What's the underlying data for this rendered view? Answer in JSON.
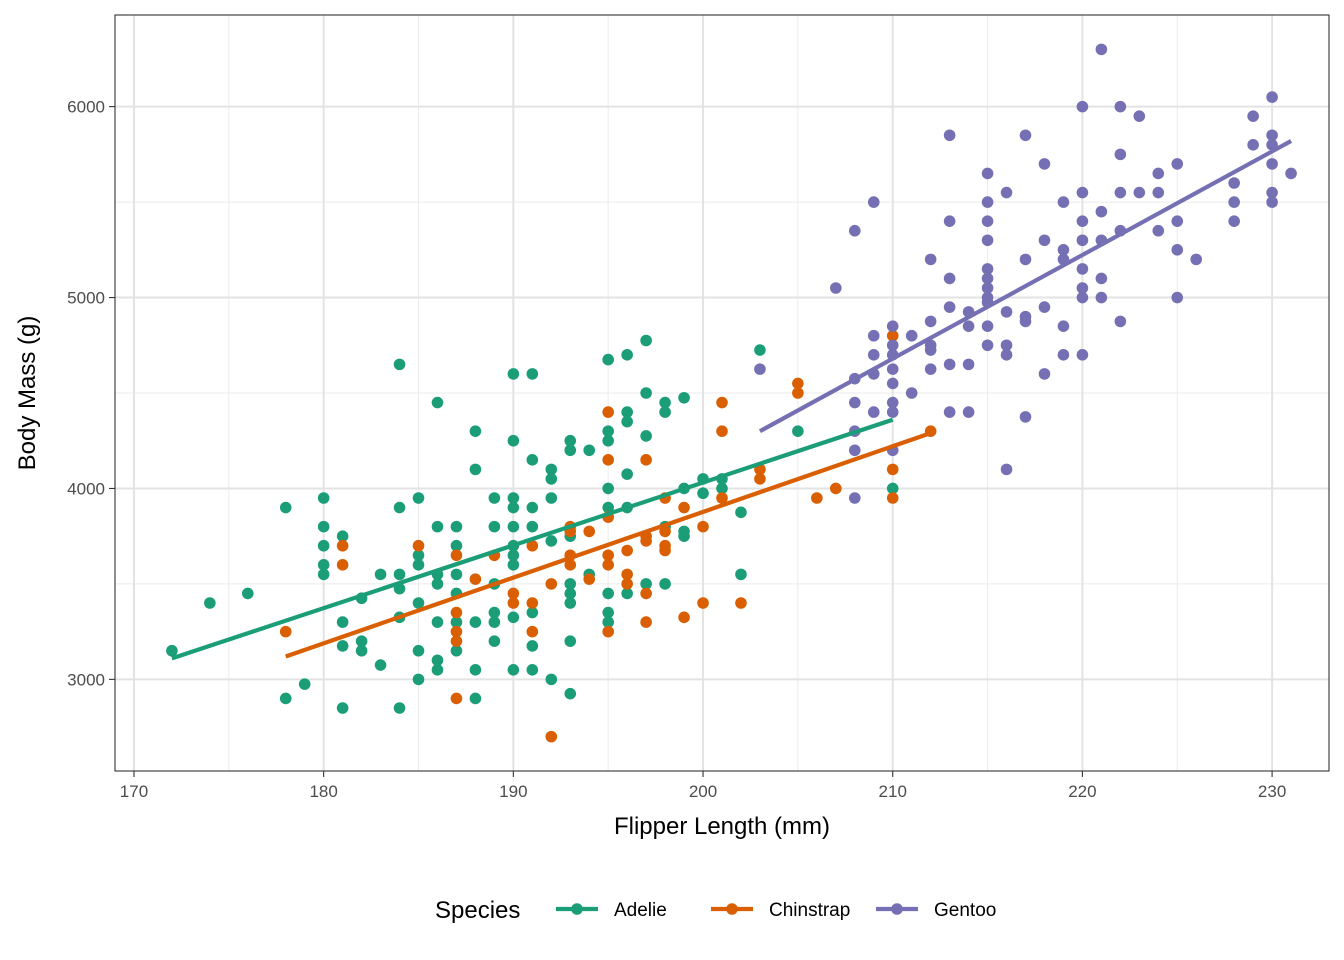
{
  "chart_data": {
    "type": "scatter",
    "xlabel": "Flipper Length (mm)",
    "ylabel": "Body Mass (g)",
    "xlim": [
      169,
      233
    ],
    "ylim": [
      2520,
      6480
    ],
    "x_ticks": [
      170,
      180,
      190,
      200,
      210,
      220,
      230
    ],
    "y_ticks": [
      3000,
      4000,
      5000,
      6000
    ],
    "x_tick_labels": [
      "170",
      "180",
      "190",
      "200",
      "210",
      "220",
      "230"
    ],
    "y_tick_labels": [
      "3000",
      "4000",
      "5000",
      "6000"
    ],
    "grid": true,
    "legend_title": "Species",
    "legend_position": "bottom",
    "series": [
      {
        "name": "Adelie",
        "color": "#1b9e77",
        "fit": {
          "x": [
            172,
            210
          ],
          "y": [
            3110,
            4360
          ]
        },
        "points": [
          [
            172,
            3150
          ],
          [
            174,
            3400
          ],
          [
            176,
            3450
          ],
          [
            178,
            3900
          ],
          [
            178,
            2900
          ],
          [
            179,
            2975
          ],
          [
            180,
            3950
          ],
          [
            180,
            3800
          ],
          [
            180,
            3700
          ],
          [
            180,
            3600
          ],
          [
            180,
            3550
          ],
          [
            181,
            3750
          ],
          [
            181,
            3300
          ],
          [
            181,
            3175
          ],
          [
            181,
            2850
          ],
          [
            182,
            3425
          ],
          [
            182,
            3200
          ],
          [
            182,
            3150
          ],
          [
            183,
            3550
          ],
          [
            183,
            3075
          ],
          [
            184,
            4650
          ],
          [
            184,
            3900
          ],
          [
            184,
            3550
          ],
          [
            184,
            3475
          ],
          [
            184,
            3325
          ],
          [
            184,
            2850
          ],
          [
            185,
            3950
          ],
          [
            185,
            3650
          ],
          [
            185,
            3600
          ],
          [
            185,
            3400
          ],
          [
            185,
            3150
          ],
          [
            185,
            3000
          ],
          [
            186,
            4450
          ],
          [
            186,
            3800
          ],
          [
            186,
            3550
          ],
          [
            186,
            3500
          ],
          [
            186,
            3300
          ],
          [
            186,
            3100
          ],
          [
            186,
            3050
          ],
          [
            187,
            3800
          ],
          [
            187,
            3700
          ],
          [
            187,
            3550
          ],
          [
            187,
            3450
          ],
          [
            187,
            3300
          ],
          [
            187,
            3150
          ],
          [
            188,
            4300
          ],
          [
            188,
            4100
          ],
          [
            188,
            3300
          ],
          [
            188,
            3050
          ],
          [
            188,
            2900
          ],
          [
            189,
            3950
          ],
          [
            189,
            3800
          ],
          [
            189,
            3500
          ],
          [
            189,
            3350
          ],
          [
            189,
            3300
          ],
          [
            189,
            3200
          ],
          [
            190,
            4600
          ],
          [
            190,
            4250
          ],
          [
            190,
            3950
          ],
          [
            190,
            3900
          ],
          [
            190,
            3800
          ],
          [
            190,
            3700
          ],
          [
            190,
            3650
          ],
          [
            190,
            3600
          ],
          [
            190,
            3325
          ],
          [
            190,
            3050
          ],
          [
            191,
            4600
          ],
          [
            191,
            4150
          ],
          [
            191,
            3900
          ],
          [
            191,
            3800
          ],
          [
            191,
            3350
          ],
          [
            191,
            3175
          ],
          [
            191,
            3050
          ],
          [
            192,
            4100
          ],
          [
            192,
            4050
          ],
          [
            192,
            3950
          ],
          [
            192,
            3725
          ],
          [
            192,
            3000
          ],
          [
            193,
            4250
          ],
          [
            193,
            4200
          ],
          [
            193,
            3750
          ],
          [
            193,
            3500
          ],
          [
            193,
            3450
          ],
          [
            193,
            3400
          ],
          [
            193,
            3200
          ],
          [
            193,
            2925
          ],
          [
            194,
            4200
          ],
          [
            194,
            3550
          ],
          [
            195,
            4675
          ],
          [
            195,
            4300
          ],
          [
            195,
            4250
          ],
          [
            195,
            4000
          ],
          [
            195,
            3900
          ],
          [
            195,
            3450
          ],
          [
            195,
            3350
          ],
          [
            195,
            3300
          ],
          [
            196,
            4700
          ],
          [
            196,
            4400
          ],
          [
            196,
            4350
          ],
          [
            196,
            4075
          ],
          [
            196,
            3900
          ],
          [
            196,
            3450
          ],
          [
            197,
            4775
          ],
          [
            197,
            4500
          ],
          [
            197,
            4275
          ],
          [
            197,
            3500
          ],
          [
            198,
            4450
          ],
          [
            198,
            4400
          ],
          [
            198,
            3800
          ],
          [
            198,
            3500
          ],
          [
            199,
            4475
          ],
          [
            199,
            4000
          ],
          [
            199,
            3775
          ],
          [
            199,
            3750
          ],
          [
            200,
            4050
          ],
          [
            200,
            3975
          ],
          [
            201,
            4050
          ],
          [
            201,
            4000
          ],
          [
            202,
            3875
          ],
          [
            202,
            3550
          ],
          [
            203,
            4725
          ],
          [
            205,
            4300
          ],
          [
            210,
            4000
          ]
        ]
      },
      {
        "name": "Chinstrap",
        "color": "#d95f02",
        "fit": {
          "x": [
            178,
            212
          ],
          "y": [
            3120,
            4290
          ]
        },
        "points": [
          [
            178,
            3250
          ],
          [
            181,
            3700
          ],
          [
            181,
            3600
          ],
          [
            185,
            3700
          ],
          [
            187,
            3650
          ],
          [
            187,
            3350
          ],
          [
            187,
            3250
          ],
          [
            187,
            3200
          ],
          [
            187,
            2900
          ],
          [
            188,
            3525
          ],
          [
            189,
            3650
          ],
          [
            190,
            3450
          ],
          [
            190,
            3400
          ],
          [
            191,
            3700
          ],
          [
            191,
            3400
          ],
          [
            191,
            3250
          ],
          [
            192,
            2700
          ],
          [
            192,
            3500
          ],
          [
            193,
            3800
          ],
          [
            193,
            3775
          ],
          [
            193,
            3650
          ],
          [
            193,
            3600
          ],
          [
            194,
            3775
          ],
          [
            194,
            3525
          ],
          [
            195,
            4400
          ],
          [
            195,
            4150
          ],
          [
            195,
            3850
          ],
          [
            195,
            3650
          ],
          [
            195,
            3600
          ],
          [
            195,
            3250
          ],
          [
            196,
            3675
          ],
          [
            196,
            3550
          ],
          [
            196,
            3500
          ],
          [
            197,
            4150
          ],
          [
            197,
            3750
          ],
          [
            197,
            3725
          ],
          [
            197,
            3450
          ],
          [
            197,
            3300
          ],
          [
            198,
            3950
          ],
          [
            198,
            3775
          ],
          [
            198,
            3700
          ],
          [
            198,
            3675
          ],
          [
            199,
            3900
          ],
          [
            199,
            3325
          ],
          [
            200,
            3800
          ],
          [
            200,
            3400
          ],
          [
            201,
            4450
          ],
          [
            201,
            4300
          ],
          [
            201,
            3950
          ],
          [
            202,
            3400
          ],
          [
            203,
            4100
          ],
          [
            203,
            4050
          ],
          [
            205,
            4550
          ],
          [
            205,
            4500
          ],
          [
            206,
            3950
          ],
          [
            207,
            4000
          ],
          [
            210,
            4800
          ],
          [
            210,
            4100
          ],
          [
            210,
            3950
          ],
          [
            212,
            4300
          ]
        ]
      },
      {
        "name": "Gentoo",
        "color": "#7570b3",
        "fit": {
          "x": [
            203,
            231
          ],
          "y": [
            4300,
            5820
          ]
        },
        "points": [
          [
            203,
            4625
          ],
          [
            207,
            5050
          ],
          [
            208,
            5350
          ],
          [
            208,
            4575
          ],
          [
            208,
            4450
          ],
          [
            208,
            4300
          ],
          [
            208,
            4200
          ],
          [
            208,
            3950
          ],
          [
            209,
            5500
          ],
          [
            209,
            4800
          ],
          [
            209,
            4700
          ],
          [
            209,
            4600
          ],
          [
            209,
            4400
          ],
          [
            210,
            4850
          ],
          [
            210,
            4750
          ],
          [
            210,
            4700
          ],
          [
            210,
            4625
          ],
          [
            210,
            4550
          ],
          [
            210,
            4450
          ],
          [
            210,
            4400
          ],
          [
            210,
            4200
          ],
          [
            211,
            4800
          ],
          [
            211,
            4500
          ],
          [
            212,
            5200
          ],
          [
            212,
            4875
          ],
          [
            212,
            4750
          ],
          [
            212,
            4725
          ],
          [
            212,
            4625
          ],
          [
            213,
            5850
          ],
          [
            213,
            5400
          ],
          [
            213,
            5100
          ],
          [
            213,
            4950
          ],
          [
            213,
            4650
          ],
          [
            213,
            4400
          ],
          [
            214,
            4925
          ],
          [
            214,
            4850
          ],
          [
            214,
            4650
          ],
          [
            214,
            4400
          ],
          [
            215,
            5650
          ],
          [
            215,
            5500
          ],
          [
            215,
            5400
          ],
          [
            215,
            5300
          ],
          [
            215,
            5150
          ],
          [
            215,
            5100
          ],
          [
            215,
            5050
          ],
          [
            215,
            5000
          ],
          [
            215,
            4975
          ],
          [
            215,
            4850
          ],
          [
            215,
            4750
          ],
          [
            216,
            5550
          ],
          [
            216,
            4925
          ],
          [
            216,
            4750
          ],
          [
            216,
            4700
          ],
          [
            216,
            4100
          ],
          [
            217,
            5850
          ],
          [
            217,
            5200
          ],
          [
            217,
            4900
          ],
          [
            217,
            4875
          ],
          [
            217,
            4375
          ],
          [
            218,
            5700
          ],
          [
            218,
            5300
          ],
          [
            218,
            4950
          ],
          [
            218,
            4600
          ],
          [
            219,
            5500
          ],
          [
            219,
            5250
          ],
          [
            219,
            5200
          ],
          [
            219,
            4850
          ],
          [
            219,
            4700
          ],
          [
            220,
            6000
          ],
          [
            220,
            5550
          ],
          [
            220,
            5400
          ],
          [
            220,
            5300
          ],
          [
            220,
            5150
          ],
          [
            220,
            5050
          ],
          [
            220,
            5000
          ],
          [
            220,
            4700
          ],
          [
            221,
            6300
          ],
          [
            221,
            5450
          ],
          [
            221,
            5300
          ],
          [
            221,
            5100
          ],
          [
            221,
            5000
          ],
          [
            222,
            6000
          ],
          [
            222,
            5750
          ],
          [
            222,
            5550
          ],
          [
            222,
            5350
          ],
          [
            222,
            4875
          ],
          [
            223,
            5950
          ],
          [
            223,
            5550
          ],
          [
            224,
            5650
          ],
          [
            224,
            5550
          ],
          [
            224,
            5350
          ],
          [
            225,
            5700
          ],
          [
            225,
            5400
          ],
          [
            225,
            5250
          ],
          [
            225,
            5000
          ],
          [
            226,
            5200
          ],
          [
            228,
            5600
          ],
          [
            228,
            5500
          ],
          [
            228,
            5400
          ],
          [
            229,
            5950
          ],
          [
            229,
            5800
          ],
          [
            230,
            6050
          ],
          [
            230,
            5850
          ],
          [
            230,
            5800
          ],
          [
            230,
            5700
          ],
          [
            230,
            5550
          ],
          [
            230,
            5500
          ],
          [
            231,
            5650
          ]
        ]
      }
    ]
  }
}
